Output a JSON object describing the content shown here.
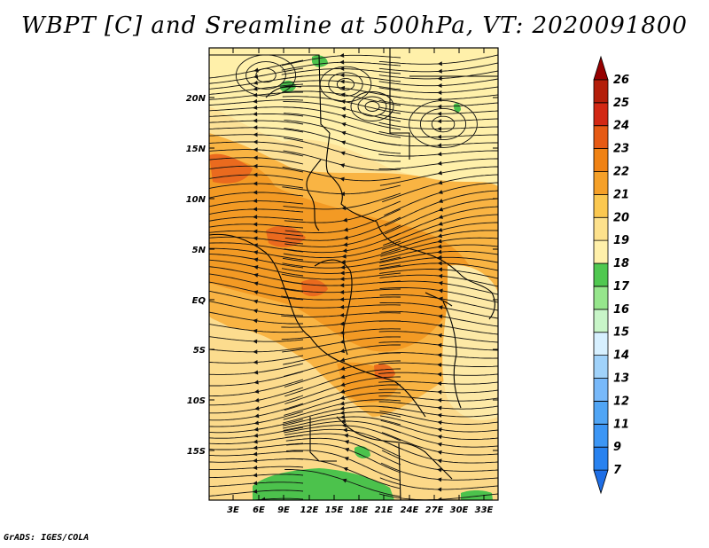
{
  "title": "WBPT [C] and Sreamline at 500hPa, VT: 2020091800",
  "credit": "GrADS: IGES/COLA",
  "map": {
    "lat_labels": [
      "20N",
      "15N",
      "10N",
      "5N",
      "EQ",
      "5S",
      "10S",
      "15S"
    ],
    "lon_labels": [
      "3E",
      "6E",
      "9E",
      "12E",
      "15E",
      "18E",
      "21E",
      "24E",
      "27E",
      "30E",
      "33E"
    ]
  },
  "colorbar": {
    "labels": [
      "7",
      "9",
      "11",
      "12",
      "13",
      "14",
      "15",
      "16",
      "17",
      "18",
      "19",
      "20",
      "21",
      "22",
      "23",
      "24",
      "25",
      "26"
    ],
    "colors": [
      "#1e6ee6",
      "#2882f0",
      "#3c96f5",
      "#50a5f5",
      "#78b9fa",
      "#a0d2fa",
      "#d7f0ff",
      "#c8f5c8",
      "#96e68c",
      "#50c850",
      "#fff0aa",
      "#fde18c",
      "#fbc850",
      "#f5a028",
      "#f08214",
      "#e65a14",
      "#d22814",
      "#b41e0a",
      "#960000"
    ]
  }
}
